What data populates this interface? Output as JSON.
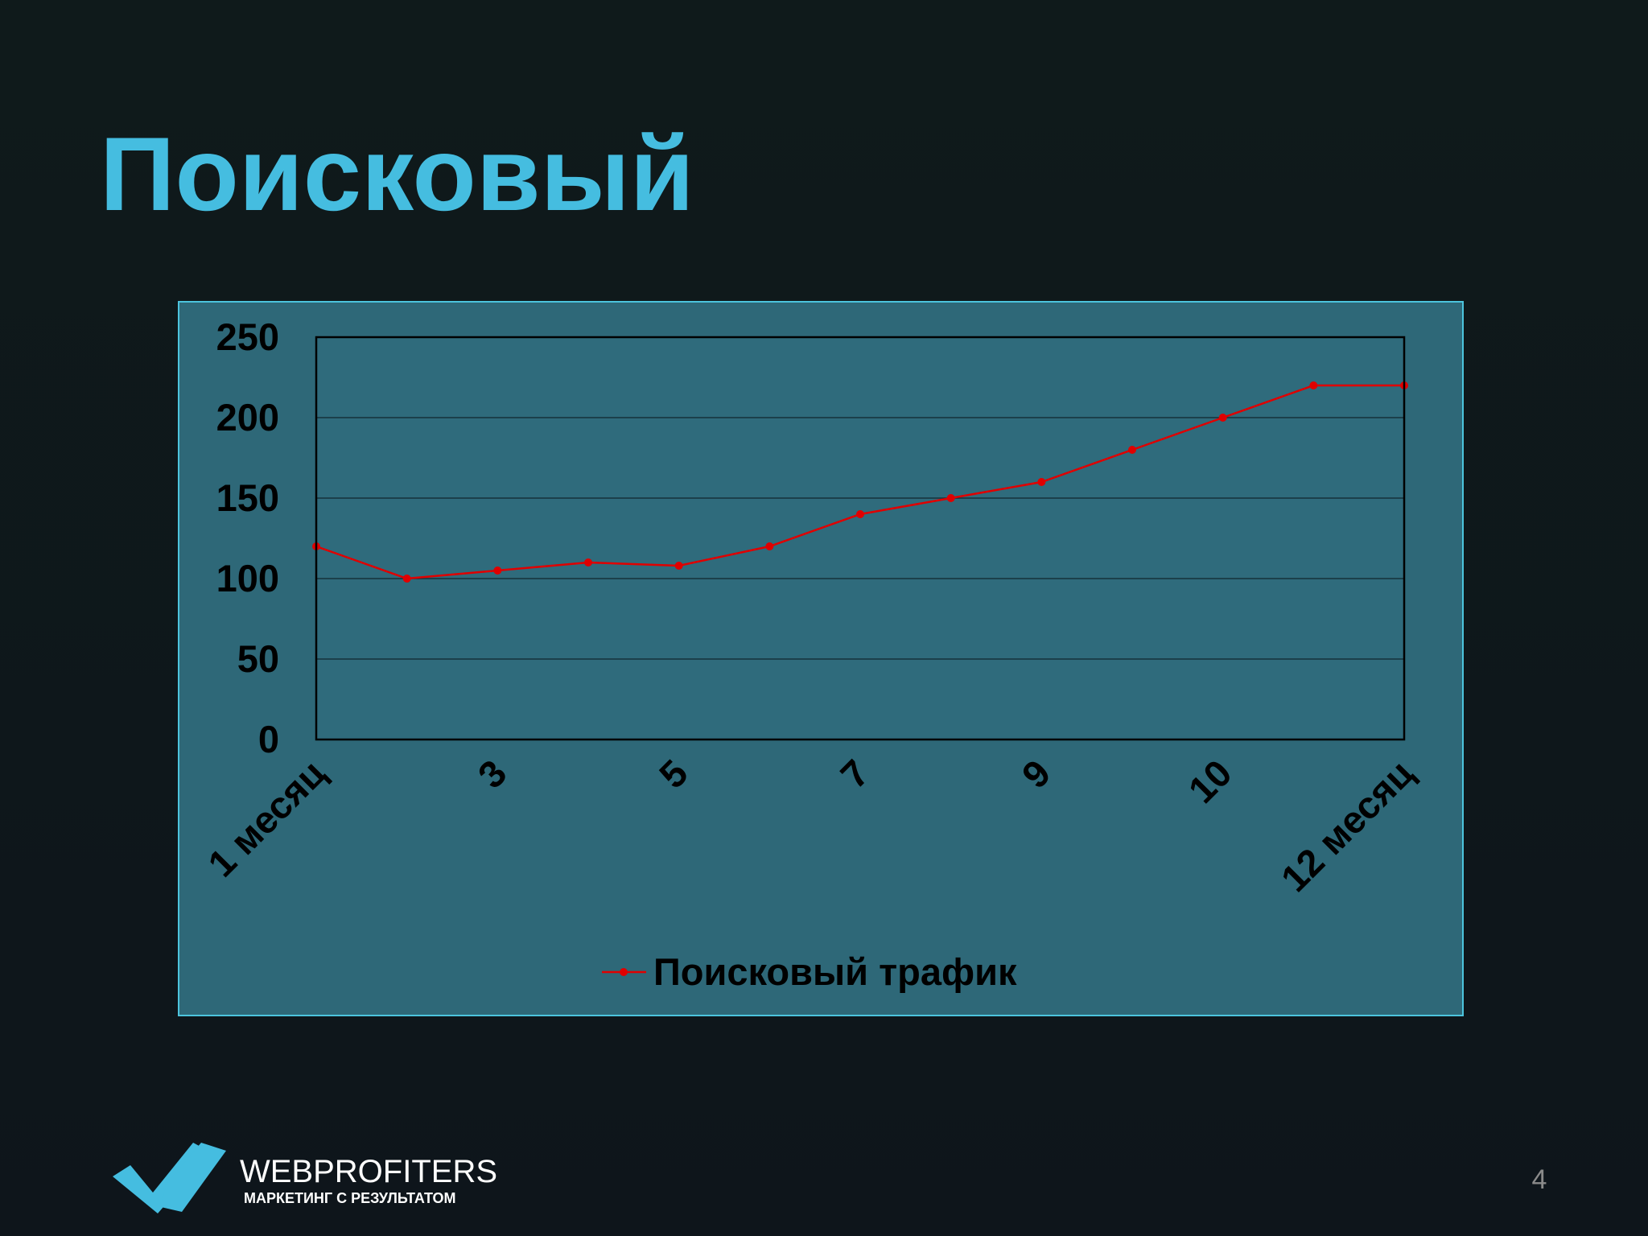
{
  "chart_data": {
    "type": "line",
    "title": "Поисковый",
    "categories": [
      "1 месяц",
      null,
      "3",
      null,
      "5",
      null,
      "7",
      null,
      "9",
      null,
      "10",
      null,
      "12 месяц"
    ],
    "series": [
      {
        "name": "Поисковый трафик",
        "color": "#e00000",
        "values": [
          120,
          100,
          105,
          110,
          108,
          120,
          140,
          150,
          160,
          180,
          200,
          220,
          220
        ]
      }
    ],
    "ylim": [
      0,
      250
    ],
    "yticks": [
      0,
      50,
      100,
      150,
      200,
      250
    ],
    "grid": true,
    "legend": "bottom"
  },
  "slide": {
    "logo_name": "WEBPROFITERS",
    "logo_tagline": "МАРКЕТИНГ С РЕЗУЛЬТАТОМ",
    "page_number": "4"
  }
}
